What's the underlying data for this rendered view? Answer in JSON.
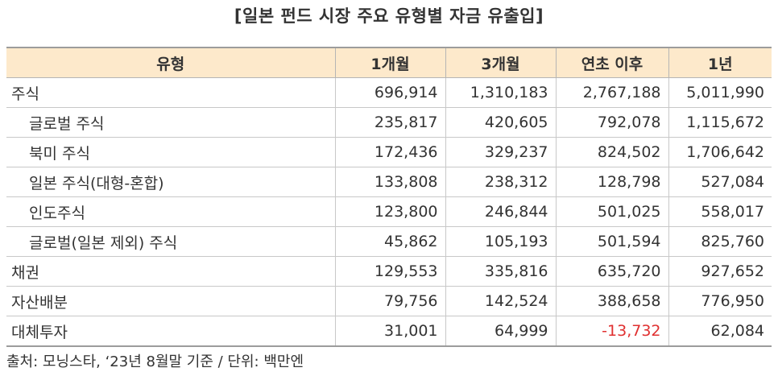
{
  "title": "[일본 펀드 시장 주요 유형별 자금 유출입]",
  "table": {
    "headers": [
      "유형",
      "1개월",
      "3개월",
      "연초 이후",
      "1년"
    ],
    "rows": [
      {
        "label": "주식",
        "indent": false,
        "values": [
          "696,914",
          "1,310,183",
          "2,767,188",
          "5,011,990"
        ]
      },
      {
        "label": "글로벌 주식",
        "indent": true,
        "values": [
          "235,817",
          "420,605",
          "792,078",
          "1,115,672"
        ]
      },
      {
        "label": "북미 주식",
        "indent": true,
        "values": [
          "172,436",
          "329,237",
          "824,502",
          "1,706,642"
        ]
      },
      {
        "label": "일본 주식(대형-혼합)",
        "indent": true,
        "values": [
          "133,808",
          "238,312",
          "128,798",
          "527,084"
        ]
      },
      {
        "label": "인도주식",
        "indent": true,
        "values": [
          "123,800",
          "246,844",
          "501,025",
          "558,017"
        ]
      },
      {
        "label": "글로벌(일본 제외) 주식",
        "indent": true,
        "values": [
          "45,862",
          "105,193",
          "501,594",
          "825,760"
        ]
      },
      {
        "label": "채권",
        "indent": false,
        "values": [
          "129,553",
          "335,816",
          "635,720",
          "927,652"
        ]
      },
      {
        "label": "자산배분",
        "indent": false,
        "values": [
          "79,756",
          "142,524",
          "388,658",
          "776,950"
        ]
      },
      {
        "label": "대체투자",
        "indent": false,
        "values": [
          "31,001",
          "64,999",
          "-13,732",
          "62,084"
        ]
      }
    ]
  },
  "negative_color": "#e03030",
  "header_bg_color": "#fde9cb",
  "source": "출처: 모닝스타, ‘23년 8월말 기준 / 단위: 백만엔"
}
